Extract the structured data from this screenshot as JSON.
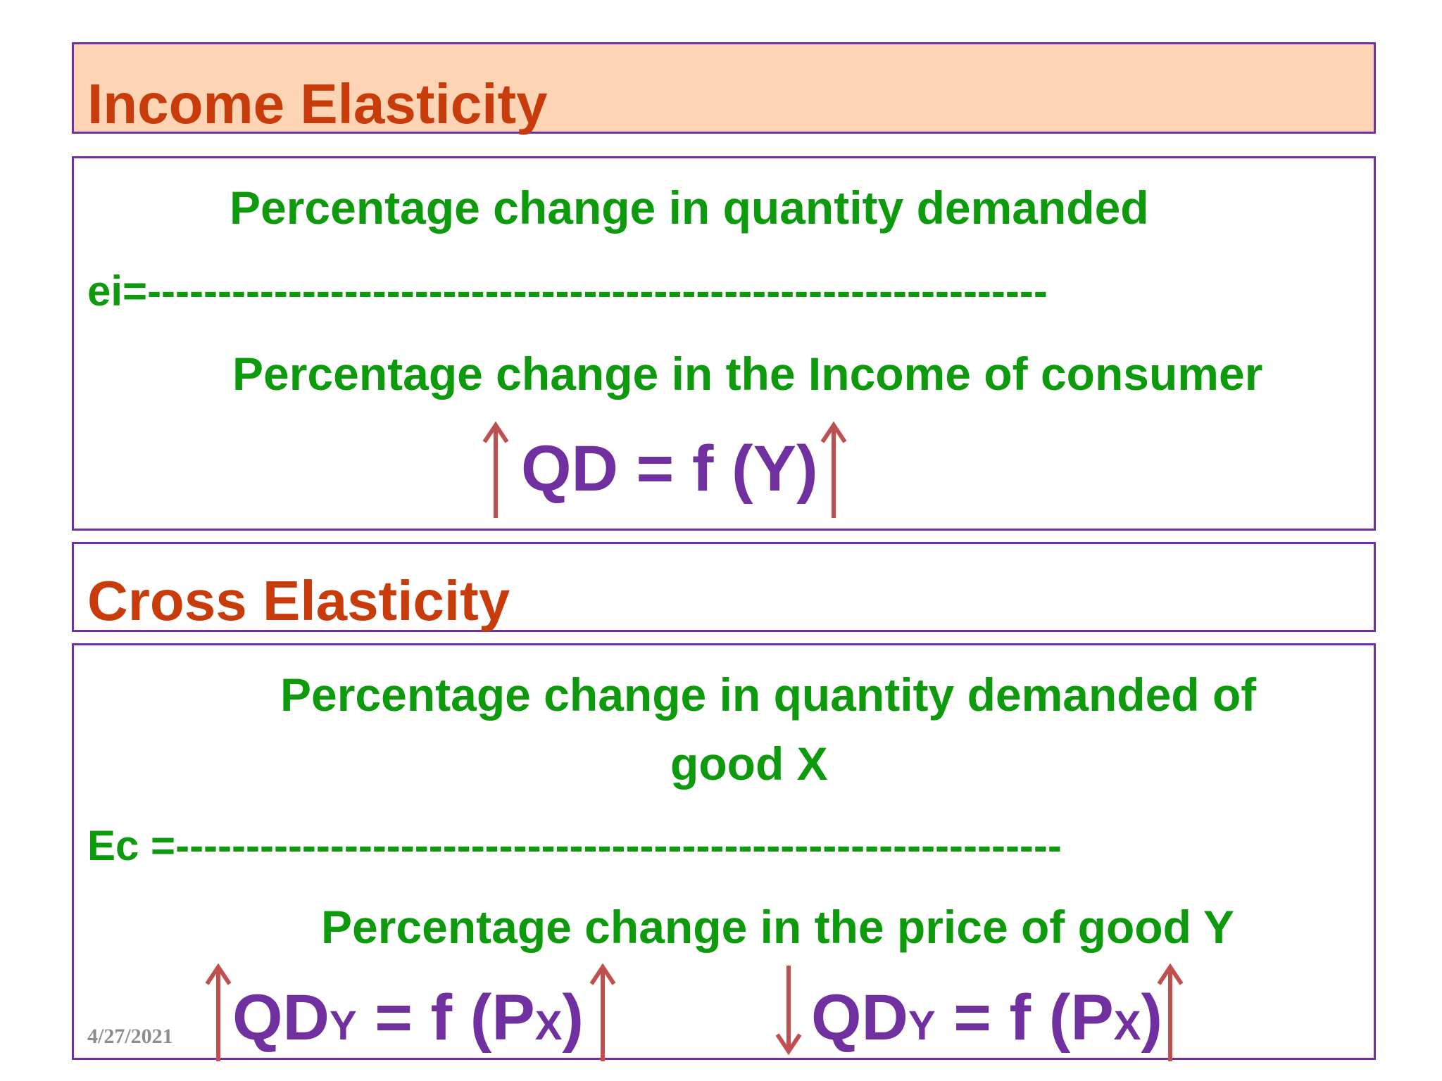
{
  "income": {
    "title": "Income Elasticity",
    "numerator": "Percentage change in quantity demanded",
    "fraction_line": "ei=----------------------------------------------------------------",
    "denominator": "Percentage change in the Income of consumer",
    "formula": {
      "main": "QD = f (Y)"
    }
  },
  "cross": {
    "title": "Cross Elasticity",
    "numerator_line1": "Percentage change in quantity demanded of",
    "numerator_line2": "good X",
    "fraction_line": "Ec =---------------------------------------------------------------",
    "denominator": "Percentage change in the price of  good Y",
    "formula_left": {
      "qd": "QD",
      "qd_sub": "Y",
      "mid": " = f (P",
      "p_sub": "X",
      "close": ")"
    },
    "formula_right": {
      "qd": "QD",
      "qd_sub": "Y",
      "mid": " = f (P",
      "p_sub": "X",
      "close": ")"
    }
  },
  "footer": {
    "date": "4/27/2021"
  },
  "colors": {
    "title": "#c83c0c",
    "formula_text": "#0d9a0d",
    "formula_symbol": "#7030a0",
    "arrow": "#c0504d",
    "title_bg": "#fdd5b5"
  },
  "icons": [
    "arrow-up-icon",
    "arrow-down-icon"
  ]
}
